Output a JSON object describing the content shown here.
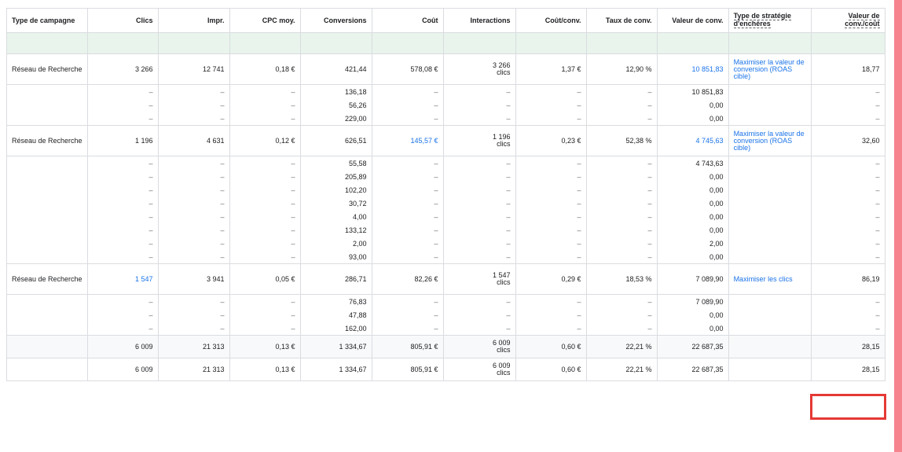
{
  "headers": {
    "type": "Type de campagne",
    "clics": "Clics",
    "impr": "Impr.",
    "cpc": "CPC moy.",
    "conversions": "Conversions",
    "cout": "Coût",
    "interactions": "Interactions",
    "cout_conv": "Coût/conv.",
    "taux_conv": "Taux de conv.",
    "valeur_conv": "Valeur de conv.",
    "strategie_l1": "Type de stratégie",
    "strategie_l2": "d'enchères",
    "valeur_cout_l1": "Valeur de",
    "valeur_cout_l2": "conv./coût"
  },
  "dash": "–",
  "campaigns": [
    {
      "type": "Réseau de Recherche",
      "clics": "3 266",
      "impr": "12 741",
      "cpc": "0,18 €",
      "conversions": "421,44",
      "cout": "578,08 €",
      "interactions_n": "3 266",
      "interactions_u": "clics",
      "cout_conv": "1,37 €",
      "taux_conv": "12,90 %",
      "valeur_conv": "10 851,83",
      "strategie": "Maximiser la valeur de conversion (ROAS cible)",
      "valeur_cout": "18,77",
      "sub": [
        {
          "conversions": "136,18",
          "valeur_conv": "10 851,83"
        },
        {
          "conversions": "56,26",
          "valeur_conv": "0,00"
        },
        {
          "conversions": "229,00",
          "valeur_conv": "0,00"
        }
      ]
    },
    {
      "type": "Réseau de Recherche",
      "clics": "1 196",
      "impr": "4 631",
      "cpc": "0,12 €",
      "conversions": "626,51",
      "cout": "145,57 €",
      "interactions_n": "1 196",
      "interactions_u": "clics",
      "cout_conv": "0,23 €",
      "taux_conv": "52,38 %",
      "valeur_conv": "4 745,63",
      "strategie": "Maximiser la valeur de conversion (ROAS cible)",
      "valeur_cout": "32,60",
      "sub": [
        {
          "conversions": "55,58",
          "valeur_conv": "4 743,63"
        },
        {
          "conversions": "205,89",
          "valeur_conv": "0,00"
        },
        {
          "conversions": "102,20",
          "valeur_conv": "0,00"
        },
        {
          "conversions": "30,72",
          "valeur_conv": "0,00"
        },
        {
          "conversions": "4,00",
          "valeur_conv": "0,00"
        },
        {
          "conversions": "133,12",
          "valeur_conv": "0,00"
        },
        {
          "conversions": "2,00",
          "valeur_conv": "2,00"
        },
        {
          "conversions": "93,00",
          "valeur_conv": "0,00"
        }
      ]
    },
    {
      "type": "Réseau de Recherche",
      "clics": "1 547",
      "impr": "3 941",
      "cpc": "0,05 €",
      "conversions": "286,71",
      "cout": "82,26 €",
      "interactions_n": "1 547",
      "interactions_u": "clics",
      "cout_conv": "0,29 €",
      "taux_conv": "18,53 %",
      "valeur_conv": "7 089,90",
      "strategie": "Maximiser les clics",
      "valeur_cout": "86,19",
      "sub": [
        {
          "conversions": "76,83",
          "valeur_conv": "7 089,90"
        },
        {
          "conversions": "47,88",
          "valeur_conv": "0,00"
        },
        {
          "conversions": "162,00",
          "valeur_conv": "0,00"
        }
      ]
    }
  ],
  "totals": [
    {
      "clics": "6 009",
      "impr": "21 313",
      "cpc": "0,13 €",
      "conversions": "1 334,67",
      "cout": "805,91 €",
      "interactions_n": "6 009",
      "interactions_u": "clics",
      "cout_conv": "0,60 €",
      "taux_conv": "22,21 %",
      "valeur_conv": "22 687,35",
      "valeur_cout": "28,15"
    },
    {
      "clics": "6 009",
      "impr": "21 313",
      "cpc": "0,13 €",
      "conversions": "1 334,67",
      "cout": "805,91 €",
      "interactions_n": "6 009",
      "interactions_u": "clics",
      "cout_conv": "0,60 €",
      "taux_conv": "22,21 %",
      "valeur_conv": "22 687,35",
      "valeur_cout": "28,15"
    }
  ],
  "colors": {
    "link": "#1a73e8",
    "highlight_border": "#e53935",
    "side_bar": "#f6848f",
    "green_row": "#e8f4ec"
  }
}
